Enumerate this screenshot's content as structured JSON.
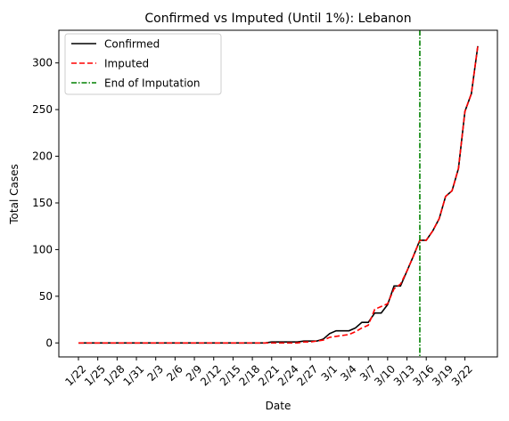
{
  "chart_data": {
    "type": "line",
    "title": "Confirmed vs Imputed (Until 1%): Lebanon",
    "xlabel": "Date",
    "ylabel": "Total Cases",
    "x": [
      "1/22",
      "1/23",
      "1/24",
      "1/25",
      "1/26",
      "1/27",
      "1/28",
      "1/29",
      "1/30",
      "1/31",
      "2/1",
      "2/2",
      "2/3",
      "2/4",
      "2/5",
      "2/6",
      "2/7",
      "2/8",
      "2/9",
      "2/10",
      "2/11",
      "2/12",
      "2/13",
      "2/14",
      "2/15",
      "2/16",
      "2/17",
      "2/18",
      "2/19",
      "2/20",
      "2/21",
      "2/22",
      "2/23",
      "2/24",
      "2/25",
      "2/26",
      "2/27",
      "2/28",
      "2/29",
      "3/1",
      "3/2",
      "3/3",
      "3/4",
      "3/5",
      "3/6",
      "3/7",
      "3/8",
      "3/9",
      "3/10",
      "3/11",
      "3/12",
      "3/13",
      "3/14",
      "3/15",
      "3/16",
      "3/17",
      "3/18",
      "3/19",
      "3/20",
      "3/21",
      "3/22",
      "3/23",
      "3/24"
    ],
    "xticks": [
      "1/22",
      "1/25",
      "1/28",
      "1/31",
      "2/3",
      "2/6",
      "2/9",
      "2/12",
      "2/15",
      "2/18",
      "2/21",
      "2/24",
      "2/27",
      "3/1",
      "3/4",
      "3/7",
      "3/10",
      "3/13",
      "3/16",
      "3/19",
      "3/22"
    ],
    "ylim": [
      -15,
      335
    ],
    "yticks": [
      0,
      50,
      100,
      150,
      200,
      250,
      300
    ],
    "series": [
      {
        "name": "Confirmed",
        "color": "#000000",
        "style": "solid",
        "values": [
          0,
          0,
          0,
          0,
          0,
          0,
          0,
          0,
          0,
          0,
          0,
          0,
          0,
          0,
          0,
          0,
          0,
          0,
          0,
          0,
          0,
          0,
          0,
          0,
          0,
          0,
          0,
          0,
          0,
          0,
          1,
          1,
          1,
          1,
          1,
          2,
          2,
          2,
          4,
          10,
          13,
          13,
          13,
          16,
          22,
          22,
          32,
          32,
          41,
          61,
          61,
          77,
          93,
          110,
          110,
          120,
          133,
          157,
          163,
          187,
          248,
          267,
          318
        ]
      },
      {
        "name": "Imputed",
        "color": "#ff0000",
        "style": "dashed",
        "values": [
          0,
          0,
          0,
          0,
          0,
          0,
          0,
          0,
          0,
          0,
          0,
          0,
          0,
          0,
          0,
          0,
          0,
          0,
          0,
          0,
          0,
          0,
          0,
          0,
          0,
          0,
          0,
          0,
          0,
          0,
          0,
          0,
          0,
          0,
          0,
          1,
          1,
          2,
          3,
          6,
          7,
          8,
          9,
          12,
          16,
          19,
          36,
          39,
          42,
          58,
          63,
          77,
          93,
          110,
          110,
          120,
          133,
          157,
          163,
          187,
          248,
          267,
          318
        ]
      }
    ],
    "vline": {
      "name": "End of Imputation",
      "x": "3/15",
      "color": "#008000",
      "style": "dashdot"
    },
    "legend": "top-left",
    "grid": false
  }
}
